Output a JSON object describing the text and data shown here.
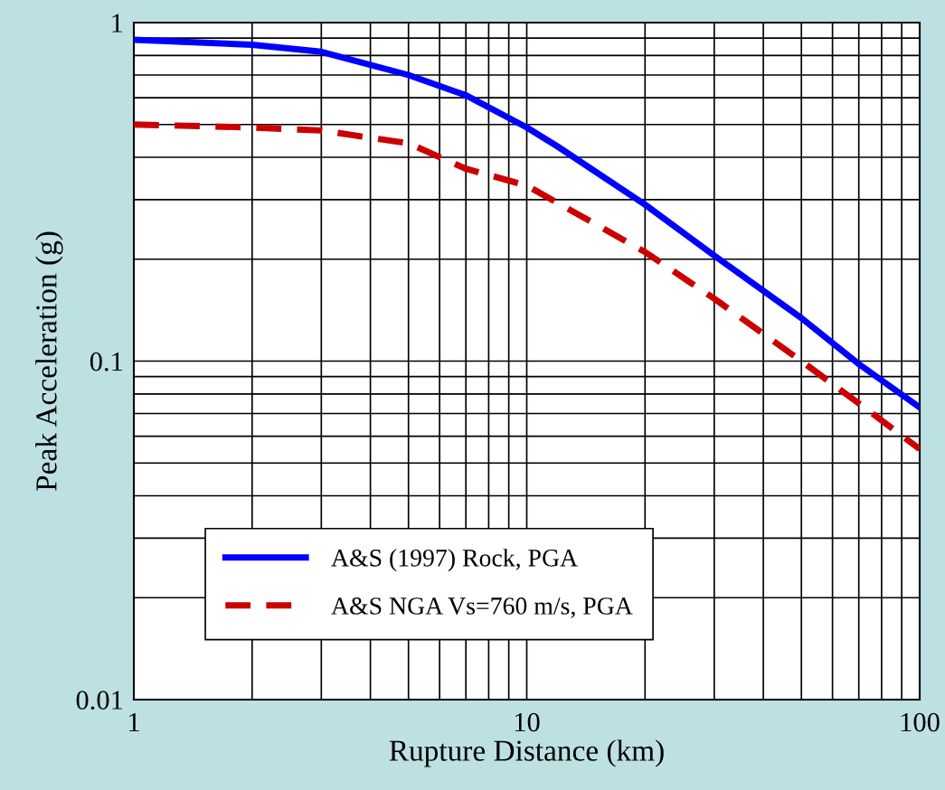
{
  "chart_data": {
    "type": "line",
    "xlabel": "Rupture Distance (km)",
    "ylabel": "Peak Acceleration (g)",
    "log": "xy",
    "grid": true,
    "legend": "bottom left",
    "marker": "none",
    "xlim": [
      1,
      100
    ],
    "xticks": [
      1,
      10,
      100
    ],
    "ylim": [
      0.01,
      1
    ],
    "yticks": [
      0.01,
      0.1,
      1
    ],
    "series": [
      {
        "name": "A&S (1997) Rock, PGA",
        "color": "#0000ff",
        "line_style": "solid",
        "x": [
          1,
          2,
          3,
          5,
          7,
          10,
          12,
          20,
          30,
          50,
          70,
          100
        ],
        "values": [
          0.89,
          0.86,
          0.82,
          0.7,
          0.61,
          0.49,
          0.43,
          0.29,
          0.205,
          0.134,
          0.098,
          0.073
        ]
      },
      {
        "name": "A&S NGA Vs=760 m/s, PGA",
        "color": "#cc0000",
        "line_style": "dashed",
        "x": [
          1,
          2,
          3,
          5,
          7,
          10,
          20,
          30,
          50,
          70,
          100
        ],
        "values": [
          0.5,
          0.49,
          0.48,
          0.44,
          0.37,
          0.33,
          0.21,
          0.153,
          0.1,
          0.075,
          0.055
        ]
      }
    ]
  }
}
